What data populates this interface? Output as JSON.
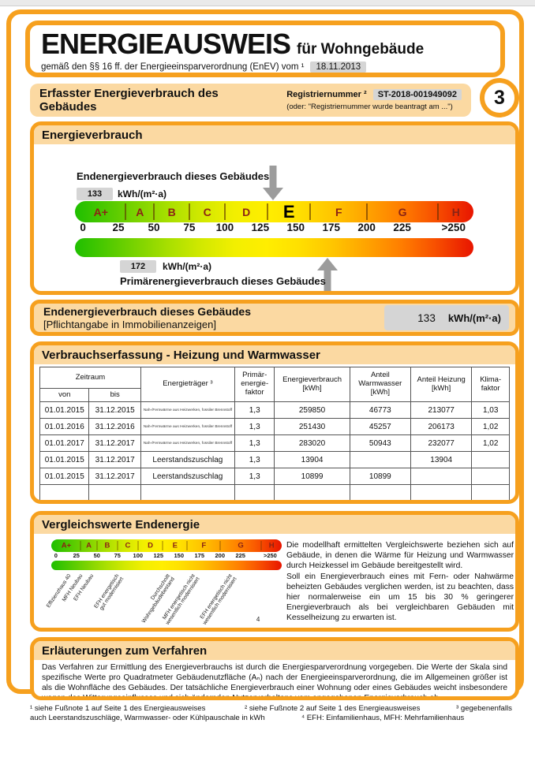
{
  "header": {
    "title": "ENERGIEAUSWEIS",
    "suffix": "für Wohngebäude",
    "law_line": "gemäß den §§ 16 ff. der Energieeinsparverordnung (EnEV) vom ¹",
    "law_date": "18.11.2013",
    "page_number": "3"
  },
  "reg_banner": {
    "title": "Erfasster Energieverbrauch des Gebäudes",
    "reg_label": "Registriernummer ²",
    "reg_value": "ST-2018-001949092",
    "reg_alt": "(oder: \"Registriernummer wurde beantragt am ...\")"
  },
  "energy_section": {
    "title": "Energieverbrauch",
    "end_label": "Endenergieverbrauch dieses Gebäudes",
    "end_value": "133",
    "unit": "kWh/(m²·a)",
    "prim_value": "172",
    "prim_label": "Primärenergieverbrauch dieses Gebäudes",
    "scale": {
      "letters": [
        {
          "t": "A+",
          "x": 6.5
        },
        {
          "t": "A",
          "x": 16.3
        },
        {
          "t": "B",
          "x": 24.3
        },
        {
          "t": "C",
          "x": 33.2
        },
        {
          "t": "D",
          "x": 43.0
        },
        {
          "t": "E",
          "x": 53.7,
          "hl": true
        },
        {
          "t": "F",
          "x": 66.2
        },
        {
          "t": "G",
          "x": 82.2
        },
        {
          "t": "H",
          "x": 95.6
        }
      ],
      "dividers": [
        12.7,
        19.8,
        28.7,
        37.6,
        48.3,
        59.0,
        73.3,
        91.1
      ],
      "ticks": [
        {
          "t": "0",
          "x": 2.0
        },
        {
          "t": "25",
          "x": 10.9
        },
        {
          "t": "50",
          "x": 19.8
        },
        {
          "t": "75",
          "x": 28.7
        },
        {
          "t": "100",
          "x": 37.6
        },
        {
          "t": "125",
          "x": 46.5
        },
        {
          "t": "150",
          "x": 55.4
        },
        {
          "t": "175",
          "x": 64.3
        },
        {
          "t": "200",
          "x": 73.2
        },
        {
          "t": "225",
          "x": 82.1
        },
        {
          "t": ">250",
          "x": 95.0
        }
      ],
      "arrow_down_x": 49.8,
      "arrow_up_x": 63.3,
      "range": [
        0,
        250
      ],
      "band_limits": {
        "A+": 30,
        "A": 50,
        "B": 75,
        "C": 100,
        "D": 130,
        "E": 160,
        "F": 200,
        "G": 250,
        "H": ">250"
      }
    }
  },
  "end_banner": {
    "title": "Endenergieverbrauch dieses Gebäudes",
    "subtitle": "[Pflichtangabe in Immobilienanzeigen]",
    "value": "133",
    "unit": "kWh/(m²·a)"
  },
  "consumption_table": {
    "title": "Verbrauchserfassung - Heizung und Warmwasser",
    "headers": {
      "zeitraum": "Zeitraum",
      "von": "von",
      "bis": "bis",
      "traeger": "Energieträger ³",
      "pef": "Primär-\nenergie-\nfaktor",
      "verbrauch": "Energieverbrauch\n[kWh]",
      "ww": "Anteil\nWarmwasser\n[kWh]",
      "heizung": "Anteil Heizung\n[kWh]",
      "klima": "Klima-\nfaktor"
    },
    "rows": [
      {
        "von": "01.01.2015",
        "bis": "31.12.2015",
        "traeger": "Nah-/Fernwärme aus Heizwerken, fossiler Brennstoff",
        "small": true,
        "pef": "1,3",
        "kwh": "259850",
        "ww": "46773",
        "heizung": "213077",
        "klima": "1,03"
      },
      {
        "von": "01.01.2016",
        "bis": "31.12.2016",
        "traeger": "Nah-/Fernwärme aus Heizwerken, fossiler Brennstoff",
        "small": true,
        "pef": "1,3",
        "kwh": "251430",
        "ww": "45257",
        "heizung": "206173",
        "klima": "1,02"
      },
      {
        "von": "01.01.2017",
        "bis": "31.12.2017",
        "traeger": "Nah-/Fernwärme aus Heizwerken, fossiler Brennstoff",
        "small": true,
        "pef": "1,3",
        "kwh": "283020",
        "ww": "50943",
        "heizung": "232077",
        "klima": "1,02"
      },
      {
        "von": "01.01.2015",
        "bis": "31.12.2017",
        "traeger": "Leerstandszuschlag",
        "small": false,
        "pef": "1,3",
        "kwh": "13904",
        "ww": "",
        "heizung": "13904",
        "klima": ""
      },
      {
        "von": "01.01.2015",
        "bis": "31.12.2017",
        "traeger": "Leerstandszuschlag",
        "small": false,
        "pef": "1,3",
        "kwh": "10899",
        "ww": "10899",
        "heizung": "",
        "klima": ""
      },
      {
        "von": "",
        "bis": "",
        "traeger": "",
        "small": false,
        "pef": "",
        "kwh": "",
        "ww": "",
        "heizung": "",
        "klima": ""
      }
    ]
  },
  "compare_section": {
    "title": "Vergleichswerte Endenergie",
    "scale": {
      "letters": [
        {
          "t": "A+",
          "x": 6.5
        },
        {
          "t": "A",
          "x": 16.3
        },
        {
          "t": "B",
          "x": 24.3
        },
        {
          "t": "C",
          "x": 33.2
        },
        {
          "t": "D",
          "x": 43.0
        },
        {
          "t": "E",
          "x": 53.7
        },
        {
          "t": "F",
          "x": 66.2
        },
        {
          "t": "G",
          "x": 82.2
        },
        {
          "t": "H",
          "x": 95.6
        }
      ],
      "dividers": [
        12.7,
        19.8,
        28.7,
        37.6,
        48.3,
        59.0,
        73.3,
        91.1
      ],
      "ticks": [
        {
          "t": "0",
          "x": 2.0
        },
        {
          "t": "25",
          "x": 10.9
        },
        {
          "t": "50",
          "x": 19.8
        },
        {
          "t": "75",
          "x": 28.7
        },
        {
          "t": "100",
          "x": 37.6
        },
        {
          "t": "125",
          "x": 46.5
        },
        {
          "t": "150",
          "x": 55.4
        },
        {
          "t": "175",
          "x": 64.3
        },
        {
          "t": "200",
          "x": 73.2
        },
        {
          "t": "225",
          "x": 82.1
        },
        {
          "t": ">250",
          "x": 95.0
        }
      ]
    },
    "labels": [
      {
        "text": "Effizienzhaus 40",
        "x": 7
      },
      {
        "text": "MFH Neubau",
        "x": 12
      },
      {
        "text": "EFH Neubau",
        "x": 17
      },
      {
        "text": "EFH energetisch\ngut modernisiert",
        "x": 28
      },
      {
        "text": "Durchschnitt\nWohngebäudebestand",
        "x": 50
      },
      {
        "text": "MFH energetisch nicht\nwesentlich modernisiert",
        "x": 61
      },
      {
        "text": "EFH energetisch nicht\nwesentlich modernisiert",
        "x": 77
      }
    ],
    "labels_footnote": "4",
    "text1": "Die modellhaft ermittelten Vergleichswerte beziehen sich auf Gebäude, in denen die Wärme für Heizung und Warmwasser durch Heizkessel im Gebäude bereitgestellt wird.",
    "text2": "Soll ein Energieverbrauch eines mit Fern- oder Nahwärme beheizten Gebäudes verglichen werden, ist zu beachten, dass hier normalerweise ein um 15 bis 30 % geringerer Energieverbrauch als bei vergleichbaren Gebäuden mit Kesselheizung zu erwarten ist."
  },
  "explain_section": {
    "title": "Erläuterungen zum Verfahren",
    "text": "Das Verfahren zur Ermittlung des Energieverbrauchs ist durch die Energiesparverordnung vorgegeben. Die Werte der Skala sind spezifische Werte pro Quadratmeter Gebäudenutzfläche (Aₙ) nach der Energieeinsparverordnung, die im Allgemeinen größer ist als die Wohnfläche des Gebäudes. Der tatsächliche Energieverbrauch einer Wohnung oder eines Gebäudes weicht insbesondere wegen des Witterungseinflusses und sich ändernden Nutzerverhaltens vom angegebenen Energieverbrauch ab."
  },
  "footnotes": {
    "f1": "¹ siehe Fußnote 1 auf Seite 1 des Energieausweises",
    "f2": "² siehe Fußnote 2 auf Seite 1 des Energieausweises",
    "f3a": "³ gegebenenfalls",
    "f3b": "auch Leerstandszuschläge, Warmwasser- oder Kühlpauschale in kWh",
    "f4": "⁴ EFH: Einfamilienhaus, MFH: Mehrfamilienhaus"
  },
  "colors": {
    "accent_orange": "#F6A01E",
    "peach": "#FBD9A2",
    "chip_gray": "#D5D5D5",
    "arrow_gray": "#9C9C9C",
    "scale_letter": "#8B2415"
  }
}
